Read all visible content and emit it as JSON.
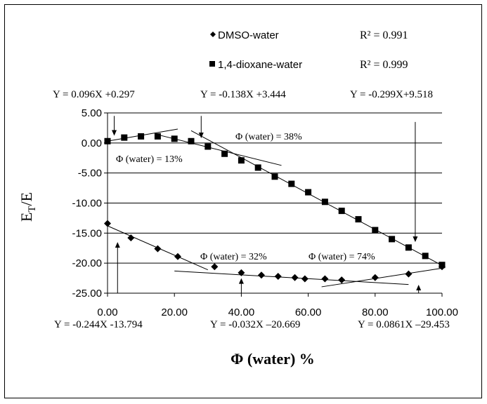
{
  "chart_data": {
    "type": "scatter",
    "xlabel": "Φ (water) %",
    "ylabel": "E",
    "ylabel_sub": "T",
    "ylabel_suffix": "/E",
    "xlim": [
      0,
      100
    ],
    "ylim": [
      -25,
      5
    ],
    "x_ticks": [
      "0.00",
      "20.00",
      "40.00",
      "60.00",
      "80.00",
      "100.00"
    ],
    "y_ticks": [
      "5.00",
      "0.00",
      "-5.00",
      "-10.00",
      "-15.00",
      "-20.00",
      "-25.00"
    ],
    "grid": "horizontal",
    "legend_position": "top",
    "series": [
      {
        "name": "DMSO-water",
        "marker": "diamond",
        "r2": "R² = 0.991",
        "x": [
          0,
          7,
          15,
          21,
          32,
          40,
          46,
          51,
          56,
          59,
          65,
          70,
          80,
          90,
          100
        ],
        "y": [
          -13.4,
          -15.8,
          -17.6,
          -18.9,
          -20.6,
          -21.6,
          -22.0,
          -22.2,
          -22.4,
          -22.6,
          -22.6,
          -22.8,
          -22.4,
          -21.8,
          -20.6
        ]
      },
      {
        "name": "1,4-dioxane-water",
        "marker": "square",
        "r2": "R² = 0.999",
        "x": [
          0,
          5,
          10,
          15,
          20,
          25,
          30,
          35,
          40,
          45,
          50,
          55,
          60,
          65,
          70,
          75,
          80,
          85,
          90,
          95,
          100
        ],
        "y": [
          0.3,
          0.9,
          1.1,
          1.1,
          0.7,
          0.3,
          -0.6,
          -1.8,
          -2.9,
          -4.1,
          -5.6,
          -6.8,
          -8.2,
          -9.8,
          -11.3,
          -12.7,
          -14.5,
          -16.0,
          -17.4,
          -18.8,
          -20.3
        ]
      }
    ],
    "top_equations": [
      "Y = 0.096X +0.297",
      "Y = -0.138X +3.444",
      "Y = -0.299X+9.518"
    ],
    "bottom_equations": [
      "Y = -0.244X -13.794",
      "Y = -0.032X –20.669",
      "Y = 0.0861X –29.453"
    ],
    "phi_labels": {
      "a": "Φ (water) = 13%",
      "b": "Φ (water) = 38%",
      "c": "Φ (water) = 32%",
      "d": "Φ (water) = 74%"
    },
    "fit_lines": [
      {
        "slope": 0.096,
        "intercept": 0.297,
        "x_range": [
          0,
          21
        ]
      },
      {
        "slope": -0.138,
        "intercept": 3.444,
        "x_range": [
          15,
          52
        ]
      },
      {
        "slope": -0.299,
        "intercept": 9.518,
        "x_range": [
          25,
          100
        ]
      },
      {
        "slope": -0.244,
        "intercept": -13.794,
        "x_range": [
          0,
          30
        ]
      },
      {
        "slope": -0.032,
        "intercept": -20.669,
        "x_range": [
          20,
          90
        ]
      },
      {
        "slope": 0.0861,
        "intercept": -29.453,
        "x_range": [
          64,
          100
        ]
      }
    ],
    "breakpoints": [
      {
        "x": 2,
        "y_from": 4.5,
        "y_to": 1.2
      },
      {
        "x": 28,
        "y_from": 4.5,
        "y_to": 0.8
      },
      {
        "x": 92,
        "y_from": 3.5,
        "y_to": -16.5
      },
      {
        "x": 3,
        "y_from": -25,
        "y_to": -16.5
      },
      {
        "x": 40,
        "y_from": -25,
        "y_to": -22.5
      },
      {
        "x": 93,
        "y_from": -25,
        "y_to": -23.6
      }
    ]
  }
}
